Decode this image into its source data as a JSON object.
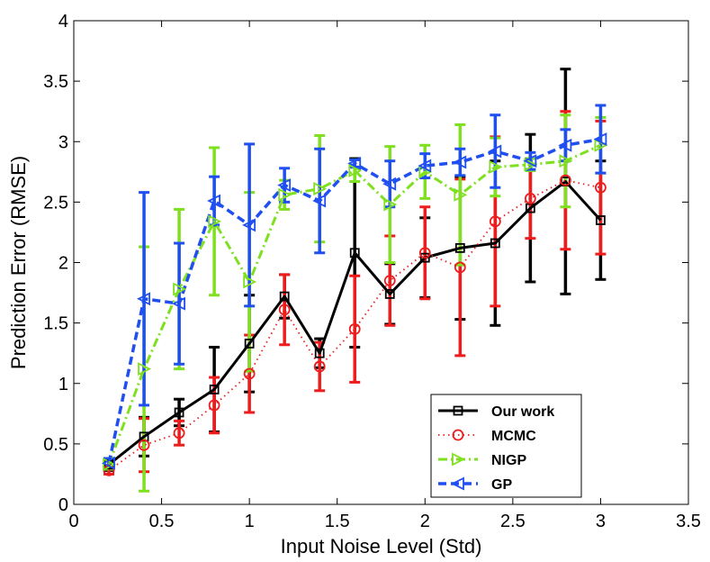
{
  "chart_data": {
    "type": "line",
    "title": "",
    "xlabel": "Input Noise Level (Std)",
    "ylabel": "Prediction Error (RMSE)",
    "xlim": [
      0,
      3.5
    ],
    "ylim": [
      0,
      4
    ],
    "xticks": [
      "0",
      "0.5",
      "1",
      "1.5",
      "2",
      "2.5",
      "3",
      "3.5"
    ],
    "yticks": [
      "0",
      "0.5",
      "1",
      "1.5",
      "2",
      "2.5",
      "3",
      "3.5",
      "4"
    ],
    "legend_position": "bottom-right",
    "x": [
      0.2,
      0.4,
      0.6,
      0.8,
      1.0,
      1.2,
      1.4,
      1.6,
      1.8,
      2.0,
      2.2,
      2.4,
      2.6,
      2.8,
      3.0
    ],
    "series": [
      {
        "name": "Our work",
        "color": "#000000",
        "linestyle": "solid",
        "marker": "square",
        "values": [
          0.33,
          0.56,
          0.76,
          0.95,
          1.33,
          1.72,
          1.25,
          2.08,
          1.74,
          2.04,
          2.12,
          2.16,
          2.45,
          2.67,
          2.35
        ],
        "errors": [
          0.05,
          0.16,
          0.11,
          0.35,
          0.4,
          0.18,
          0.12,
          0.78,
          0.25,
          0.33,
          0.59,
          0.68,
          0.61,
          0.93,
          0.49
        ]
      },
      {
        "name": "MCMC",
        "color": "#ee1c1c",
        "linestyle": "dotted",
        "marker": "circle",
        "values": [
          0.28,
          0.49,
          0.59,
          0.82,
          1.08,
          1.61,
          1.14,
          1.45,
          1.85,
          2.08,
          1.96,
          2.34,
          2.53,
          2.68,
          2.62
        ],
        "errors": [
          0.03,
          0.22,
          0.1,
          0.23,
          0.32,
          0.29,
          0.2,
          0.44,
          0.37,
          0.38,
          0.73,
          0.7,
          0.33,
          0.57,
          0.55
        ]
      },
      {
        "name": "NIGP",
        "color": "#7ee01e",
        "linestyle": "dashdot",
        "marker": "triangle-right",
        "values": [
          0.33,
          1.12,
          1.78,
          2.34,
          1.84,
          2.56,
          2.61,
          2.76,
          2.48,
          2.75,
          2.56,
          2.79,
          2.81,
          2.84,
          2.97
        ],
        "errors": [
          0.04,
          1.01,
          0.66,
          0.61,
          0.74,
          0.12,
          0.44,
          0.09,
          0.48,
          0.22,
          0.58,
          0.24,
          0.05,
          0.38,
          0.23
        ]
      },
      {
        "name": "GP",
        "color": "#1f4ff0",
        "linestyle": "dashed",
        "marker": "triangle-left",
        "values": [
          0.34,
          1.7,
          1.66,
          2.51,
          2.31,
          2.64,
          2.51,
          2.82,
          2.65,
          2.8,
          2.83,
          2.92,
          2.84,
          2.97,
          3.02
        ],
        "errors": [
          0.04,
          0.88,
          0.5,
          0.2,
          0.67,
          0.14,
          0.43,
          0.03,
          0.19,
          0.1,
          0.11,
          0.3,
          0.07,
          0.13,
          0.28
        ]
      }
    ]
  }
}
